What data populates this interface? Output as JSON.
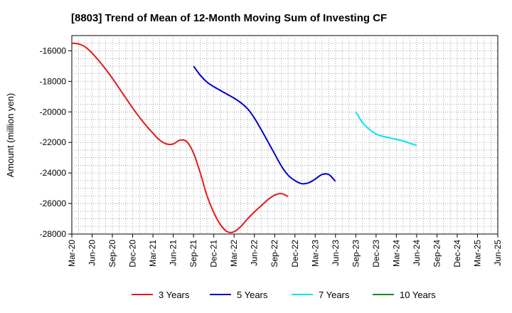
{
  "chart_data": {
    "type": "line",
    "title": "[8803]  Trend of Mean of 12-Month Moving Sum of Investing CF",
    "xlabel": "",
    "ylabel": "Amount (million yen)",
    "ylim": [
      -28000,
      -15000
    ],
    "y_ticks": [
      -16000,
      -18000,
      -20000,
      -22000,
      -24000,
      -26000,
      -28000
    ],
    "y_tick_labels": [
      "-16000",
      "-18000",
      "-20000",
      "-22000",
      "-24000",
      "-26000",
      "-28000"
    ],
    "x_tick_labels": [
      "Mar-20",
      "Jun-20",
      "Sep-20",
      "Dec-20",
      "Mar-21",
      "Jun-21",
      "Sep-21",
      "Dec-21",
      "Mar-22",
      "Jun-22",
      "Sep-22",
      "Dec-22",
      "Mar-23",
      "Jun-23",
      "Sep-23",
      "Dec-23",
      "Mar-24",
      "Jun-24",
      "Sep-24",
      "Dec-24",
      "Mar-25",
      "Jun-25"
    ],
    "grid": true,
    "legend_position": "bottom",
    "series": [
      {
        "name": "3 Years",
        "color": "#e31a1c",
        "start_index": 0,
        "values": [
          -15500,
          -15550,
          -15750,
          -16150,
          -16650,
          -17200,
          -17800,
          -18450,
          -19100,
          -19750,
          -20350,
          -20900,
          -21400,
          -21850,
          -22100,
          -22100,
          -21850,
          -21950,
          -22700,
          -24000,
          -25500,
          -26600,
          -27400,
          -27850,
          -27850,
          -27500,
          -27000,
          -26550,
          -26150,
          -25750,
          -25450,
          -25350,
          -25550
        ]
      },
      {
        "name": "5 Years",
        "color": "#0000cc",
        "start_index": 18,
        "values": [
          -17000,
          -17600,
          -18050,
          -18350,
          -18600,
          -18850,
          -19100,
          -19400,
          -19800,
          -20400,
          -21150,
          -21950,
          -22750,
          -23550,
          -24150,
          -24500,
          -24700,
          -24650,
          -24400,
          -24100,
          -24100,
          -24550
        ]
      },
      {
        "name": "7 Years",
        "color": "#00e5ee",
        "start_index": 42,
        "values": [
          -20000,
          -20700,
          -21150,
          -21450,
          -21600,
          -21700,
          -21800,
          -21900,
          -22050,
          -22200
        ]
      },
      {
        "name": "10 Years",
        "color": "#1a8a1a",
        "start_index": 0,
        "values": []
      }
    ]
  }
}
